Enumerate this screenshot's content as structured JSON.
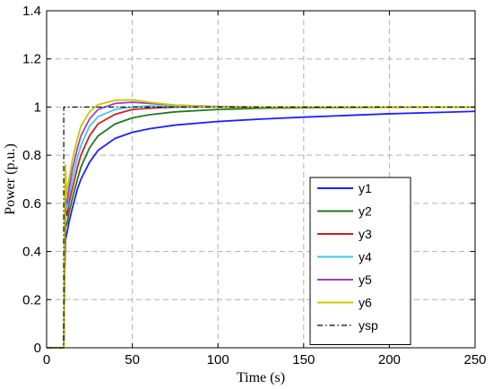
{
  "chart_data": {
    "type": "line",
    "title": "",
    "xlabel": "Time (s)",
    "ylabel": "Power (p.u.)",
    "xlim": [
      0,
      250
    ],
    "ylim": [
      0,
      1.4
    ],
    "xticks": [
      0,
      50,
      100,
      150,
      200,
      250
    ],
    "yticks": [
      0,
      0.2,
      0.4,
      0.6,
      0.8,
      1,
      1.2,
      1.4
    ],
    "xtick_labels": [
      "0",
      "50",
      "100",
      "150",
      "200",
      "250"
    ],
    "ytick_labels": [
      "0",
      "0.2",
      "0.4",
      "0.6",
      "0.8",
      "1",
      "1.2",
      "1.4"
    ],
    "grid": true,
    "legend_position": "right",
    "series": [
      {
        "name": "y1",
        "color": "#1f1fff",
        "dash": "solid",
        "x": [
          0,
          8,
          10,
          10.5,
          11,
          12,
          13,
          15,
          18,
          20,
          25,
          30,
          40,
          50,
          60,
          75,
          100,
          125,
          150,
          175,
          200,
          225,
          250
        ],
        "y": [
          0,
          0,
          0,
          0.3,
          0.45,
          0.48,
          0.52,
          0.58,
          0.66,
          0.7,
          0.77,
          0.82,
          0.87,
          0.895,
          0.91,
          0.925,
          0.94,
          0.95,
          0.958,
          0.965,
          0.972,
          0.977,
          0.982
        ]
      },
      {
        "name": "y2",
        "color": "#207820",
        "dash": "solid",
        "x": [
          0,
          8,
          10,
          10.5,
          11,
          12,
          13,
          15,
          18,
          20,
          25,
          30,
          40,
          50,
          60,
          75,
          100,
          125,
          150,
          200,
          250
        ],
        "y": [
          0,
          0,
          0,
          0.35,
          0.5,
          0.52,
          0.56,
          0.62,
          0.7,
          0.75,
          0.83,
          0.88,
          0.93,
          0.955,
          0.968,
          0.98,
          0.99,
          0.995,
          0.997,
          0.999,
          1.0
        ]
      },
      {
        "name": "y3",
        "color": "#cc2020",
        "dash": "solid",
        "x": [
          0,
          8,
          10,
          10.5,
          11,
          12,
          13,
          15,
          18,
          20,
          25,
          30,
          40,
          50,
          60,
          75,
          100,
          125,
          150,
          250
        ],
        "y": [
          0,
          0,
          0,
          0.4,
          0.58,
          0.55,
          0.6,
          0.66,
          0.75,
          0.8,
          0.88,
          0.93,
          0.97,
          0.99,
          0.995,
          1.0,
          1.001,
          1.0,
          1.0,
          1.0
        ]
      },
      {
        "name": "y4",
        "color": "#40c8e8",
        "dash": "solid",
        "x": [
          0,
          8,
          10,
          10.5,
          11,
          12,
          13,
          15,
          18,
          20,
          25,
          30,
          40,
          50,
          60,
          75,
          100,
          125,
          150,
          250
        ],
        "y": [
          0,
          0,
          0,
          0.45,
          0.62,
          0.58,
          0.63,
          0.7,
          0.79,
          0.84,
          0.92,
          0.96,
          0.99,
          1.0,
          1.005,
          1.003,
          1.0,
          1.0,
          1.0,
          1.0
        ]
      },
      {
        "name": "y5",
        "color": "#a040c8",
        "dash": "solid",
        "x": [
          0,
          8,
          10,
          10.5,
          11,
          12,
          13,
          15,
          18,
          20,
          25,
          30,
          40,
          50,
          60,
          75,
          100,
          125,
          150,
          250
        ],
        "y": [
          0,
          0,
          0,
          0.5,
          0.68,
          0.6,
          0.66,
          0.74,
          0.83,
          0.88,
          0.95,
          0.99,
          1.015,
          1.02,
          1.015,
          1.008,
          1.002,
          1.0,
          1.0,
          1.0
        ]
      },
      {
        "name": "y6",
        "color": "#c8c800",
        "dash": "solid",
        "x": [
          0,
          8,
          10,
          10.5,
          11,
          11.5,
          12,
          13,
          15,
          18,
          20,
          25,
          30,
          40,
          50,
          60,
          75,
          100,
          125,
          150,
          250
        ],
        "y": [
          0,
          0,
          0,
          0.55,
          0.76,
          0.62,
          0.66,
          0.7,
          0.78,
          0.87,
          0.92,
          0.98,
          1.01,
          1.028,
          1.03,
          1.02,
          1.008,
          1.0,
          1.0,
          1.0,
          1.0
        ]
      },
      {
        "name": "ysp",
        "color": "#000000",
        "dash": "dashdot",
        "x": [
          0,
          10,
          10.01,
          250
        ],
        "y": [
          0,
          0,
          1.0,
          1.0
        ]
      }
    ]
  }
}
